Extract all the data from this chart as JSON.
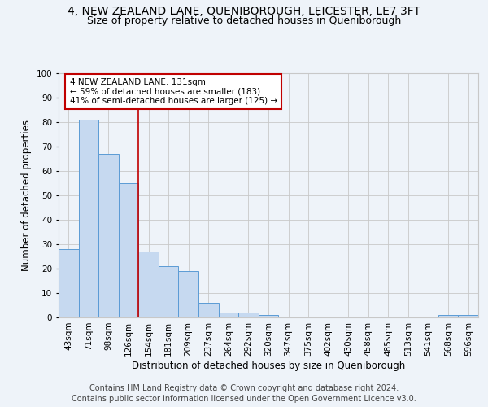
{
  "title": "4, NEW ZEALAND LANE, QUENIBOROUGH, LEICESTER, LE7 3FT",
  "subtitle": "Size of property relative to detached houses in Queniborough",
  "xlabel": "Distribution of detached houses by size in Queniborough",
  "ylabel": "Number of detached properties",
  "footnote1": "Contains HM Land Registry data © Crown copyright and database right 2024.",
  "footnote2": "Contains public sector information licensed under the Open Government Licence v3.0.",
  "categories": [
    "43sqm",
    "71sqm",
    "98sqm",
    "126sqm",
    "154sqm",
    "181sqm",
    "209sqm",
    "237sqm",
    "264sqm",
    "292sqm",
    "320sqm",
    "347sqm",
    "375sqm",
    "402sqm",
    "430sqm",
    "458sqm",
    "485sqm",
    "513sqm",
    "541sqm",
    "568sqm",
    "596sqm"
  ],
  "values": [
    28,
    81,
    67,
    55,
    27,
    21,
    19,
    6,
    2,
    2,
    1,
    0,
    0,
    0,
    0,
    0,
    0,
    0,
    0,
    1,
    1
  ],
  "bar_color": "#c6d9f0",
  "bar_edge_color": "#5b9bd5",
  "annotation_text": "4 NEW ZEALAND LANE: 131sqm\n← 59% of detached houses are smaller (183)\n41% of semi-detached houses are larger (125) →",
  "annotation_box_color": "#ffffff",
  "annotation_box_edge_color": "#c00000",
  "vline_color": "#c00000",
  "vline_x": 3.5,
  "ylim": [
    0,
    100
  ],
  "yticks": [
    0,
    10,
    20,
    30,
    40,
    50,
    60,
    70,
    80,
    90,
    100
  ],
  "grid_color": "#c8c8c8",
  "background_color": "#eef3f9",
  "title_fontsize": 10,
  "subtitle_fontsize": 9,
  "axis_label_fontsize": 8.5,
  "tick_fontsize": 7.5,
  "footnote_fontsize": 7.0,
  "annotation_fontsize": 7.5
}
